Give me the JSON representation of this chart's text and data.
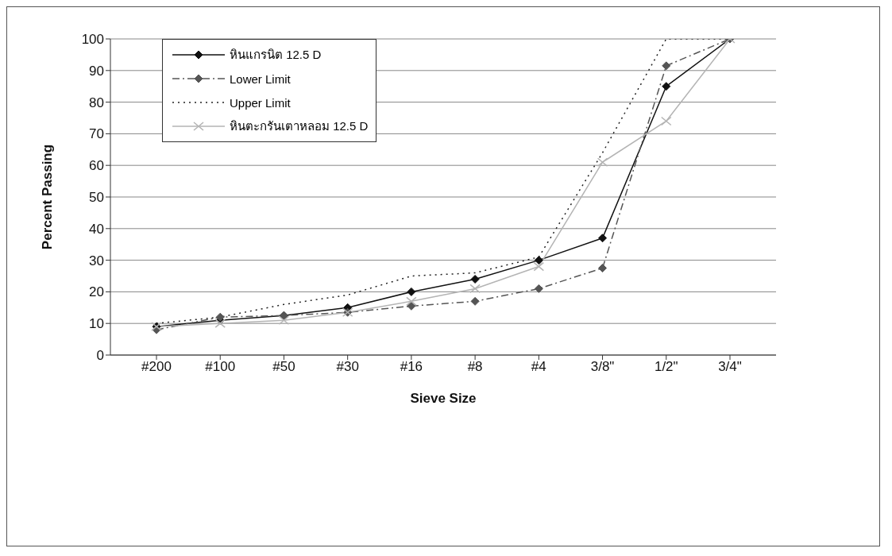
{
  "chart_data": {
    "type": "line",
    "xlabel": "Sieve Size",
    "ylabel": "Percent Passing",
    "categories": [
      "#200",
      "#100",
      "#50",
      "#30",
      "#16",
      "#8",
      "#4",
      "3/8\"",
      "1/2\"",
      "3/4\""
    ],
    "series": [
      {
        "name": "หินแกรนิต 12.5 D",
        "color": "#111111",
        "marker": "diamond",
        "line_style": "solid",
        "values": [
          9,
          11,
          12.5,
          15,
          20,
          24,
          30,
          37,
          85,
          100
        ]
      },
      {
        "name": "Lower Limit",
        "color": "#555555",
        "marker": "diamond",
        "line_style": "dashed",
        "values": [
          8,
          12,
          12.5,
          13.5,
          15.5,
          17,
          21,
          27.5,
          91.5,
          100
        ]
      },
      {
        "name": "Upper Limit",
        "color": "#222222",
        "marker": "none",
        "line_style": "dotted",
        "values": [
          10,
          12,
          16,
          19,
          25,
          26,
          31,
          64,
          100,
          100
        ]
      },
      {
        "name": "หินตะกรันเตาหลอม 12.5 D",
        "color": "#b4b4b4",
        "marker": "cross",
        "line_style": "solid",
        "values": [
          9,
          10,
          11,
          13.5,
          17,
          21,
          28,
          61,
          74,
          100
        ]
      }
    ],
    "ylim": [
      0,
      100
    ],
    "yticks": [
      0,
      10,
      20,
      30,
      40,
      50,
      60,
      70,
      80,
      90,
      100
    ],
    "grid": "y",
    "legend": "top left"
  }
}
